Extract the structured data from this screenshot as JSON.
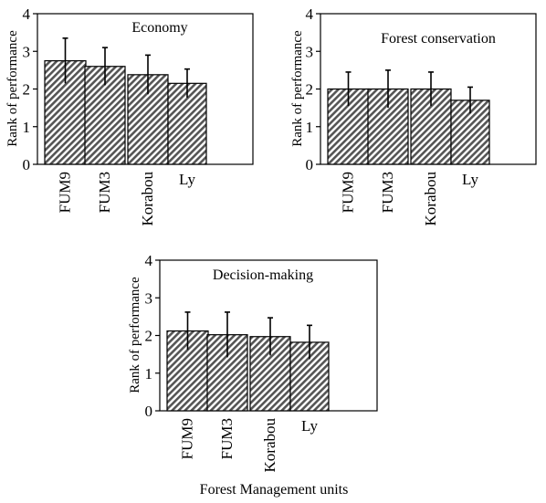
{
  "figure": {
    "xlabel": "Forest Management units"
  },
  "chart_data": [
    {
      "type": "bar",
      "title": "Economy",
      "ylabel": "Rank of performance",
      "xlabel": "",
      "ylim": [
        0,
        4
      ],
      "yticks": [
        0,
        1,
        2,
        3,
        4
      ],
      "categories": [
        "FUM9",
        "FUM3",
        "Korabou",
        "Ly"
      ],
      "values": [
        2.75,
        2.6,
        2.38,
        2.15
      ],
      "error": [
        0.6,
        0.5,
        0.52,
        0.38
      ],
      "fill_pattern": "diagonal-hatch",
      "colors": {
        "bar_fill": "#7a7a7a",
        "bar_stroke": "#000000"
      }
    },
    {
      "type": "bar",
      "title": "Forest conservation",
      "ylabel": "Rank of performance",
      "xlabel": "",
      "ylim": [
        0,
        4
      ],
      "yticks": [
        0,
        1,
        2,
        3,
        4
      ],
      "categories": [
        "FUM9",
        "FUM3",
        "Korabou",
        "Ly"
      ],
      "values": [
        2.0,
        2.0,
        2.0,
        1.7
      ],
      "error": [
        0.45,
        0.5,
        0.45,
        0.35
      ],
      "fill_pattern": "diagonal-hatch",
      "colors": {
        "bar_fill": "#7a7a7a",
        "bar_stroke": "#000000"
      }
    },
    {
      "type": "bar",
      "title": "Decision-making",
      "ylabel": "Rank of performance",
      "xlabel": "",
      "ylim": [
        0,
        4
      ],
      "yticks": [
        0,
        1,
        2,
        3,
        4
      ],
      "categories": [
        "FUM9",
        "FUM3",
        "Korabou",
        "Ly"
      ],
      "values": [
        2.12,
        2.02,
        1.97,
        1.82
      ],
      "error": [
        0.5,
        0.6,
        0.5,
        0.45
      ],
      "fill_pattern": "diagonal-hatch",
      "colors": {
        "bar_fill": "#7a7a7a",
        "bar_stroke": "#000000"
      }
    }
  ]
}
